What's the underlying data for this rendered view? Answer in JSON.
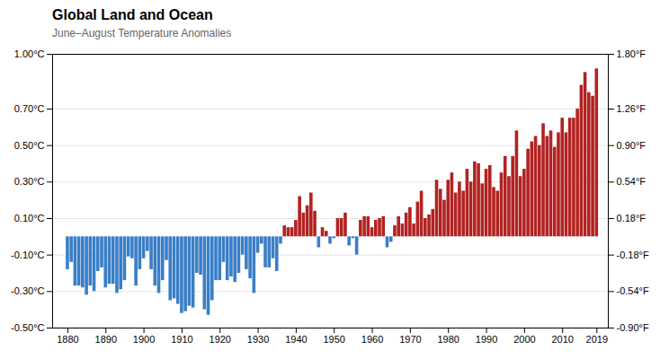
{
  "chart_data": {
    "type": "bar",
    "title": "Global Land and Ocean",
    "subtitle": "June–August Temperature Anomalies",
    "x": [
      1880,
      1881,
      1882,
      1883,
      1884,
      1885,
      1886,
      1887,
      1888,
      1889,
      1890,
      1891,
      1892,
      1893,
      1894,
      1895,
      1896,
      1897,
      1898,
      1899,
      1900,
      1901,
      1902,
      1903,
      1904,
      1905,
      1906,
      1907,
      1908,
      1909,
      1910,
      1911,
      1912,
      1913,
      1914,
      1915,
      1916,
      1917,
      1918,
      1919,
      1920,
      1921,
      1922,
      1923,
      1924,
      1925,
      1926,
      1927,
      1928,
      1929,
      1930,
      1931,
      1932,
      1933,
      1934,
      1935,
      1936,
      1937,
      1938,
      1939,
      1940,
      1941,
      1942,
      1943,
      1944,
      1945,
      1946,
      1947,
      1948,
      1949,
      1950,
      1951,
      1952,
      1953,
      1954,
      1955,
      1956,
      1957,
      1958,
      1959,
      1960,
      1961,
      1962,
      1963,
      1964,
      1965,
      1966,
      1967,
      1968,
      1969,
      1970,
      1971,
      1972,
      1973,
      1974,
      1975,
      1976,
      1977,
      1978,
      1979,
      1980,
      1981,
      1982,
      1983,
      1984,
      1985,
      1986,
      1987,
      1988,
      1989,
      1990,
      1991,
      1992,
      1993,
      1994,
      1995,
      1996,
      1997,
      1998,
      1999,
      2000,
      2001,
      2002,
      2003,
      2004,
      2005,
      2006,
      2007,
      2008,
      2009,
      2010,
      2011,
      2012,
      2013,
      2014,
      2015,
      2016,
      2017,
      2018,
      2019
    ],
    "values": [
      -0.18,
      -0.14,
      -0.27,
      -0.27,
      -0.28,
      -0.32,
      -0.27,
      -0.3,
      -0.19,
      -0.17,
      -0.28,
      -0.26,
      -0.26,
      -0.31,
      -0.29,
      -0.24,
      -0.11,
      -0.12,
      -0.27,
      -0.18,
      -0.12,
      -0.08,
      -0.18,
      -0.27,
      -0.31,
      -0.24,
      -0.13,
      -0.35,
      -0.34,
      -0.37,
      -0.42,
      -0.41,
      -0.38,
      -0.39,
      -0.2,
      -0.21,
      -0.4,
      -0.43,
      -0.35,
      -0.24,
      -0.24,
      -0.14,
      -0.24,
      -0.22,
      -0.25,
      -0.2,
      -0.1,
      -0.18,
      -0.23,
      -0.31,
      -0.09,
      -0.04,
      -0.17,
      -0.17,
      -0.12,
      -0.19,
      -0.04,
      0.06,
      0.05,
      0.05,
      0.09,
      0.22,
      0.13,
      0.17,
      0.24,
      0.14,
      -0.06,
      0.05,
      0.03,
      -0.04,
      -0.01,
      0.1,
      0.1,
      0.13,
      -0.05,
      -0.01,
      -0.1,
      0.09,
      0.11,
      0.11,
      0.05,
      0.09,
      0.1,
      0.11,
      -0.06,
      -0.03,
      0.06,
      0.11,
      0.07,
      0.13,
      0.16,
      0.07,
      0.19,
      0.25,
      0.1,
      0.12,
      0.15,
      0.31,
      0.26,
      0.2,
      0.31,
      0.35,
      0.24,
      0.3,
      0.25,
      0.37,
      0.3,
      0.41,
      0.4,
      0.29,
      0.37,
      0.39,
      0.27,
      0.25,
      0.35,
      0.44,
      0.33,
      0.44,
      0.58,
      0.33,
      0.37,
      0.48,
      0.52,
      0.55,
      0.5,
      0.62,
      0.55,
      0.58,
      0.49,
      0.57,
      0.65,
      0.57,
      0.65,
      0.65,
      0.7,
      0.83,
      0.9,
      0.79,
      0.77,
      0.92
    ],
    "colors": [
      "#3A7EC6",
      "#3A7EC6",
      "#3A7EC6",
      "#3A7EC6",
      "#3A7EC6",
      "#3A7EC6",
      "#3A7EC6",
      "#3A7EC6",
      "#3A7EC6",
      "#3A7EC6",
      "#3A7EC6",
      "#3A7EC6",
      "#3A7EC6",
      "#3A7EC6",
      "#3A7EC6",
      "#3A7EC6",
      "#3A7EC6",
      "#3A7EC6",
      "#3A7EC6",
      "#3A7EC6",
      "#3A7EC6",
      "#3A7EC6",
      "#3A7EC6",
      "#3A7EC6",
      "#3A7EC6",
      "#3A7EC6",
      "#3A7EC6",
      "#3A7EC6",
      "#3A7EC6",
      "#3A7EC6",
      "#3A7EC6",
      "#3A7EC6",
      "#3A7EC6",
      "#3A7EC6",
      "#3A7EC6",
      "#3A7EC6",
      "#3A7EC6",
      "#3A7EC6",
      "#3A7EC6",
      "#3A7EC6",
      "#3A7EC6",
      "#3A7EC6",
      "#3A7EC6",
      "#3A7EC6",
      "#3A7EC6",
      "#3A7EC6",
      "#3A7EC6",
      "#3A7EC6",
      "#3A7EC6",
      "#3A7EC6",
      "#3A7EC6",
      "#3A7EC6",
      "#3A7EC6",
      "#3A7EC6",
      "#3A7EC6",
      "#3A7EC6",
      "#3A7EC6",
      "#B22222",
      "#B22222",
      "#B22222",
      "#B22222",
      "#B22222",
      "#B22222",
      "#B22222",
      "#B22222",
      "#B22222",
      "#3A7EC6",
      "#B22222",
      "#B22222",
      "#3A7EC6",
      "#3A7EC6",
      "#B22222",
      "#B22222",
      "#B22222",
      "#3A7EC6",
      "#3A7EC6",
      "#3A7EC6",
      "#B22222",
      "#B22222",
      "#B22222",
      "#B22222",
      "#B22222",
      "#B22222",
      "#B22222",
      "#3A7EC6",
      "#3A7EC6",
      "#B22222",
      "#B22222",
      "#B22222",
      "#B22222",
      "#B22222",
      "#B22222",
      "#B22222",
      "#B22222",
      "#B22222",
      "#B22222",
      "#B22222",
      "#B22222",
      "#B22222",
      "#B22222",
      "#B22222",
      "#B22222",
      "#B22222",
      "#B22222",
      "#B22222",
      "#B22222",
      "#B22222",
      "#B22222",
      "#B22222",
      "#B22222",
      "#B22222",
      "#B22222",
      "#B22222",
      "#B22222",
      "#B22222",
      "#B22222",
      "#B22222",
      "#B22222",
      "#B22222",
      "#B22222",
      "#B22222",
      "#B22222",
      "#B22222",
      "#B22222",
      "#B22222",
      "#B22222",
      "#B22222",
      "#B22222",
      "#B22222",
      "#B22222",
      "#B22222",
      "#B22222",
      "#B22222",
      "#B22222",
      "#B22222",
      "#B22222",
      "#B22222",
      "#B22222",
      "#B22222",
      "#B22222"
    ],
    "xlim": [
      1876,
      2022
    ],
    "xticks": [
      1880,
      1890,
      1900,
      1910,
      1920,
      1930,
      1940,
      1950,
      1960,
      1970,
      1980,
      1990,
      2000,
      2010,
      2019
    ],
    "ylim": [
      -0.5,
      1.0
    ],
    "yticks": [
      {
        "value": -0.5,
        "label": "-0.50°C"
      },
      {
        "value": -0.3,
        "label": "-0.30°C"
      },
      {
        "value": -0.1,
        "label": "-0.10°C"
      },
      {
        "value": 0.1,
        "label": "0.10°C"
      },
      {
        "value": 0.3,
        "label": "0.30°C"
      },
      {
        "value": 0.5,
        "label": "0.50°C"
      },
      {
        "value": 0.7,
        "label": "0.70°C"
      },
      {
        "value": 1.0,
        "label": "1.00°C"
      }
    ],
    "y2lim": [
      -0.5,
      1.0
    ],
    "y2ticks": [
      {
        "value": -0.5,
        "label": "-0.90°F"
      },
      {
        "value": -0.3,
        "label": "-0.54°F"
      },
      {
        "value": -0.1,
        "label": "-0.18°F"
      },
      {
        "value": 0.1,
        "label": "0.18°F"
      },
      {
        "value": 0.3,
        "label": "0.54°F"
      },
      {
        "value": 0.5,
        "label": "0.90°F"
      },
      {
        "value": 0.7,
        "label": "1.26°F"
      },
      {
        "value": 1.0,
        "label": "1.80°F"
      }
    ],
    "grid": true
  }
}
